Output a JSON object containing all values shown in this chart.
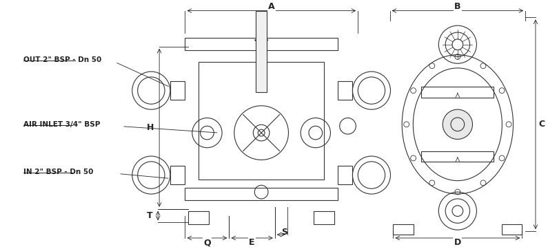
{
  "bg_color": "#ffffff",
  "line_color": "#333333",
  "dim_color": "#222222",
  "label_out": "OUT 2\" BSP - Dn 50",
  "label_air": "AIR INLET 3/4\" BSP",
  "label_in": "IN 2\" BSP - Dn 50",
  "dim_A": "A",
  "dim_B": "B",
  "dim_C": "C",
  "dim_D": "D",
  "dim_E": "E",
  "dim_H": "H",
  "dim_Q": "Q",
  "dim_S": "S",
  "dim_T": "T",
  "font_label": 7.5,
  "font_dim": 9.0
}
